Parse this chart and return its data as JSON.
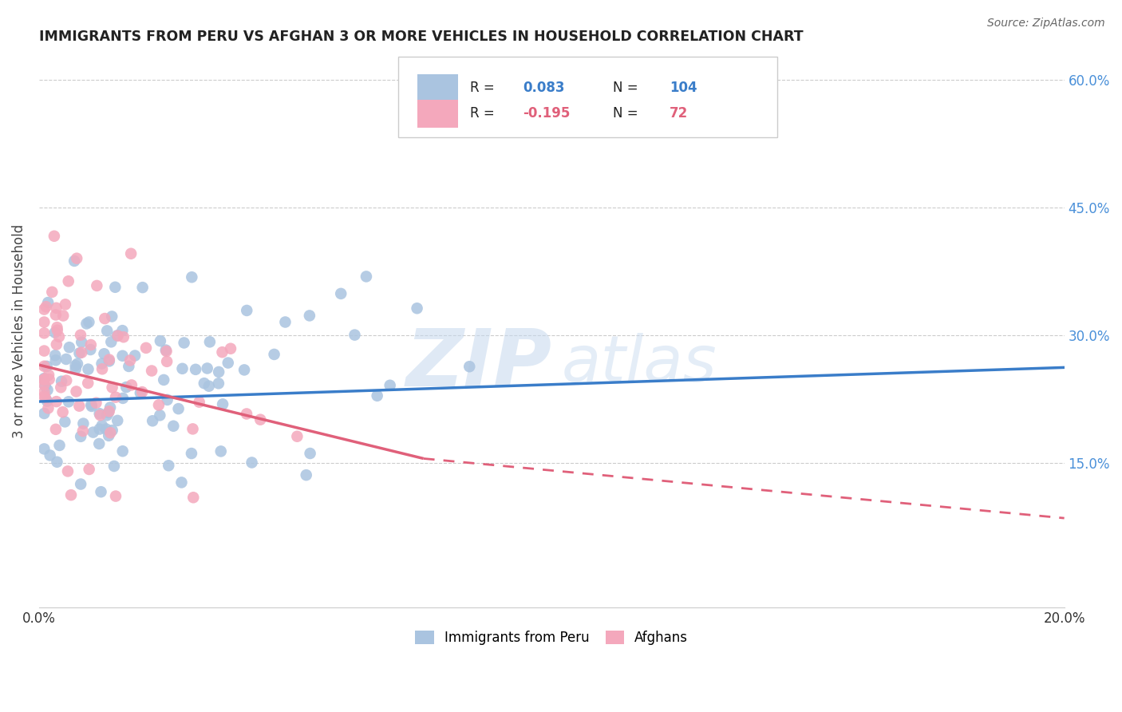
{
  "title": "IMMIGRANTS FROM PERU VS AFGHAN 3 OR MORE VEHICLES IN HOUSEHOLD CORRELATION CHART",
  "source": "Source: ZipAtlas.com",
  "ylabel": "3 or more Vehicles in Household",
  "xlim": [
    0.0,
    0.2
  ],
  "ylim": [
    -0.02,
    0.63
  ],
  "peru_R": 0.083,
  "peru_N": 104,
  "afghan_R": -0.195,
  "afghan_N": 72,
  "peru_color": "#aac4e0",
  "afghan_color": "#f4a8bc",
  "peru_line_color": "#3a7dc9",
  "afghan_line_color": "#e0607a",
  "peru_line_y0": 0.222,
  "peru_line_y1": 0.262,
  "afghan_line_y0": 0.265,
  "afghan_line_solid_x1": 0.075,
  "afghan_line_solid_y1": 0.155,
  "afghan_line_dash_x1": 0.2,
  "afghan_line_dash_y1": 0.085,
  "watermark_zip": "ZIP",
  "watermark_atlas": "atlas",
  "legend_entries": [
    "Immigrants from Peru",
    "Afghans"
  ],
  "background_color": "#ffffff",
  "grid_color": "#cccccc",
  "title_color": "#222222",
  "right_axis_color": "#4a90d9",
  "legend_text_color": "#222222",
  "right_yticks": [
    0.15,
    0.3,
    0.45,
    0.6
  ],
  "right_yticklabels": [
    "15.0%",
    "30.0%",
    "45.0%",
    "60.0%"
  ]
}
